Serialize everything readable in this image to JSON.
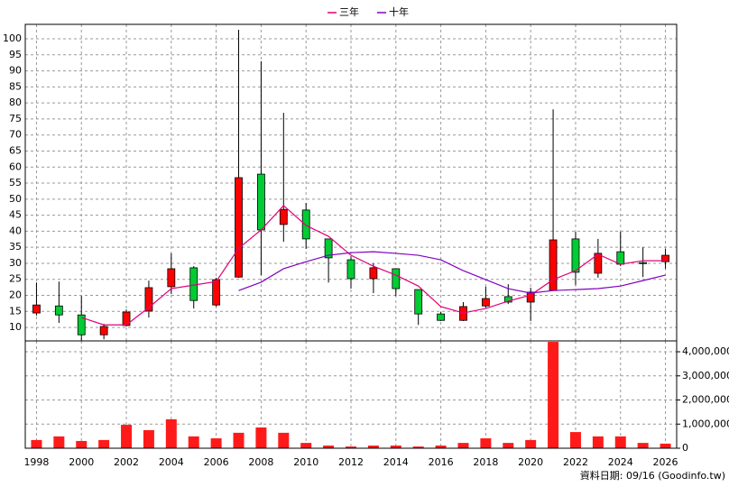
{
  "chart_data": [
    {
      "type": "candlestick",
      "x": [
        1998,
        1999,
        2000,
        2001,
        2002,
        2003,
        2004,
        2005,
        2006,
        2007,
        2008,
        2009,
        2010,
        2011,
        2012,
        2013,
        2014,
        2015,
        2016,
        2017,
        2018,
        2019,
        2020,
        2021,
        2022,
        2023,
        2024,
        2025,
        2026
      ],
      "open": [
        14.5,
        16.7,
        13.9,
        7.7,
        10.6,
        15.1,
        22.7,
        28.6,
        17,
        25.7,
        57.8,
        42.1,
        46.6,
        37.6,
        31.1,
        25.2,
        28.3,
        21.8,
        14.2,
        12.2,
        16.7,
        19.6,
        17.9,
        21.5,
        37.6,
        26.9,
        33.6,
        30.2,
        30.5
      ],
      "high": [
        24,
        24.3,
        19.8,
        11.1,
        15.6,
        24.6,
        33.1,
        29.1,
        25.5,
        102.8,
        93,
        76.9,
        48.8,
        37.6,
        32.2,
        30,
        28.3,
        21.8,
        14.8,
        17.9,
        22.7,
        23.5,
        22.4,
        78,
        39.8,
        37.6,
        39.8,
        35,
        34.5
      ],
      "low": [
        13.7,
        11.4,
        6,
        6.3,
        10.3,
        13.1,
        20.4,
        15.9,
        16.5,
        25.5,
        26.3,
        36.7,
        34.5,
        24,
        22.1,
        20.7,
        19.8,
        10.8,
        12,
        12,
        16.2,
        17.3,
        12,
        21.5,
        23.2,
        25.5,
        29.1,
        25.7,
        28.3
      ],
      "close": [
        17,
        13.9,
        7.7,
        10.3,
        14.8,
        22.4,
        28.3,
        18.4,
        24.9,
        56.7,
        40.4,
        46.8,
        37.6,
        31.7,
        25.2,
        28.6,
        22.1,
        14.2,
        12.2,
        16.5,
        19,
        17.9,
        21,
        37.3,
        27.2,
        33.1,
        29.7,
        29.9,
        32.5
      ],
      "up_color": "#ff0000",
      "down_color": "#00cc33",
      "lines": [
        {
          "name": "三年",
          "color": "#e0007a",
          "values": [
            null,
            null,
            13.1,
            10.8,
            10.8,
            16.2,
            22.1,
            23.2,
            24.3,
            34.7,
            40.4,
            48,
            41.8,
            38.4,
            32.5,
            29.1,
            26.3,
            22.9,
            16.5,
            14.5,
            15.9,
            18.2,
            20.1,
            24.9,
            27.7,
            32.8,
            29.7,
            30.8,
            30.8
          ]
        },
        {
          "name": "十年",
          "color": "#8000c0",
          "values": [
            null,
            null,
            null,
            null,
            null,
            null,
            null,
            null,
            null,
            21.5,
            24.1,
            28.3,
            30.5,
            32.5,
            33.3,
            33.6,
            33.1,
            32.5,
            31.1,
            27.7,
            24.9,
            22.1,
            20.7,
            21.5,
            21.8,
            22.1,
            22.9,
            24.6,
            26.3
          ]
        }
      ],
      "xlim": [
        1997.5,
        2026.5
      ],
      "xticks": [
        1998,
        2000,
        2002,
        2004,
        2006,
        2008,
        2010,
        2012,
        2014,
        2016,
        2018,
        2020,
        2022,
        2024,
        2026
      ],
      "ylim": [
        5.8,
        104.5
      ],
      "yticks": [
        10,
        15,
        20,
        25,
        30,
        35,
        40,
        45,
        50,
        55,
        60,
        65,
        70,
        75,
        80,
        85,
        90,
        95,
        100
      ],
      "grid": true
    },
    {
      "type": "bar",
      "x": [
        1998,
        1999,
        2000,
        2001,
        2002,
        2003,
        2004,
        2005,
        2006,
        2007,
        2008,
        2009,
        2010,
        2011,
        2012,
        2013,
        2014,
        2015,
        2016,
        2017,
        2018,
        2019,
        2020,
        2021,
        2022,
        2023,
        2024,
        2025,
        2026
      ],
      "values": [
        340000,
        490000,
        300000,
        340000,
        970000,
        750000,
        1200000,
        490000,
        410000,
        640000,
        860000,
        640000,
        220000,
        110000,
        70000,
        110000,
        110000,
        70000,
        110000,
        220000,
        410000,
        220000,
        340000,
        4410000,
        670000,
        490000,
        490000,
        220000,
        190000
      ],
      "color": "#ff1a1a",
      "xlim": [
        1997.5,
        2026.5
      ],
      "xticks": [
        1998,
        2000,
        2002,
        2004,
        2006,
        2008,
        2010,
        2012,
        2014,
        2016,
        2018,
        2020,
        2022,
        2024,
        2026
      ],
      "ylim": [
        0,
        4450000
      ],
      "yticks": [
        0,
        {
          "value": 1000000,
          "label": "1,000,000"
        },
        {
          "value": 2000000,
          "label": "2,000,000"
        },
        {
          "value": 3000000,
          "label": "3,000,000"
        },
        {
          "value": 4000000,
          "label": "4,000,000"
        }
      ],
      "grid": true
    }
  ],
  "footer": "資料日期: 09/16 (Goodinfo.tw)"
}
